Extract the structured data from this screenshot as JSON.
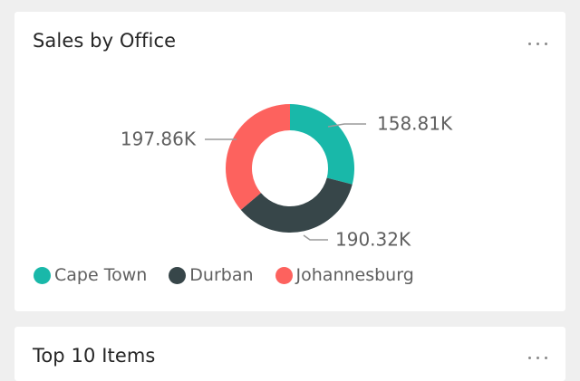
{
  "cards": [
    {
      "title": "Sales by Office",
      "more_icon": "more-horizontal-icon"
    },
    {
      "title": "Top 10 Items",
      "more_icon": "more-horizontal-icon"
    }
  ],
  "colors": {
    "cape_town": "#19b8a9",
    "durban": "#374649",
    "johannesburg": "#fd625e",
    "leader_line": "#9a9a9a",
    "label_text": "#5f5f5f"
  },
  "chart_data": {
    "type": "pie",
    "variant": "donut",
    "title": "Sales by Office",
    "categories": [
      "Cape Town",
      "Durban",
      "Johannesburg"
    ],
    "values": [
      158810,
      190320,
      197860
    ],
    "data_labels": [
      "158.81K",
      "190.32K",
      "197.86K"
    ],
    "legend_position": "bottom-left"
  }
}
